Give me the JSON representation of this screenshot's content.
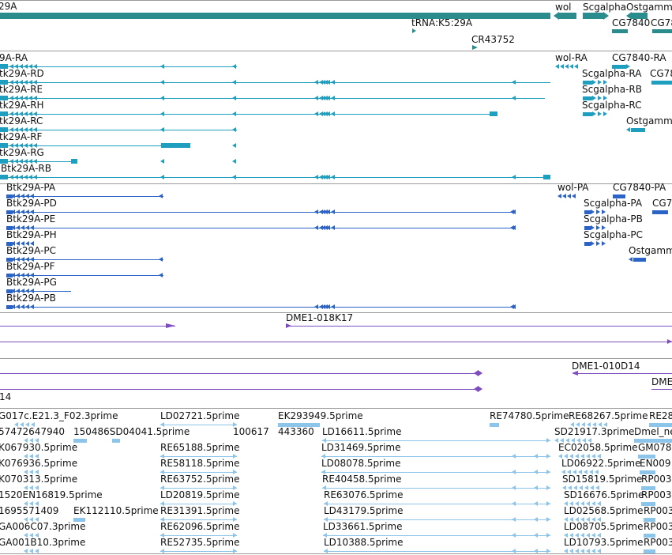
{
  "colors": {
    "gene": "#2a8c8c",
    "transcript_rna": "#1f9fbf",
    "protein": "#2b63c7",
    "clone": "#7f4cbf",
    "est": "#8cc4ea",
    "separator": "#9a9a9a"
  },
  "tracks": {
    "genes": {
      "labels": [
        "29A",
        "wol",
        "Scgalpha",
        "Ostgamma",
        "tRNA:K5:29A",
        "CG7840",
        "CG78",
        "CR43752"
      ]
    },
    "rna": {
      "labels": [
        "9A-RA",
        "tk29A-RD",
        "tk29A-RE",
        "tk29A-RH",
        "tk29A-RC",
        "tk29A-RF",
        "tk29A-RG",
        "Btk29A-RB",
        "wol-RA",
        "CG7840-RA",
        "Scgalpha-RA",
        "CG78",
        "Scgalpha-RB",
        "Scgalpha-RC",
        "Ostgamma"
      ]
    },
    "protein": {
      "labels": [
        "Btk29A-PA",
        "Btk29A-PD",
        "Btk29A-PE",
        "Btk29A-PH",
        "Btk29A-PC",
        "Btk29A-PF",
        "Btk29A-PG",
        "Btk29A-PB",
        "wol-PA",
        "CG7840-PA",
        "Scgalpha-PA",
        "CG7",
        "Scgalpha-PB",
        "Scgalpha-PC",
        "Ostgamm"
      ]
    },
    "clones_a": {
      "labels": [
        "DME1-018K17"
      ]
    },
    "clones_b": {
      "labels": [
        "DME1-010D14",
        "14",
        "DME"
      ]
    },
    "ests": {
      "labels": [
        "G017c.E21.3_F02.3prime",
        "LD02721.5prime",
        "EK293949.5prime",
        "RE74780.5prime",
        "RE68267.5prime",
        "RE28",
        "57472647940",
        "150486SD04041.5prime",
        "100617",
        "443360",
        "LD16611.5prime",
        "SD21917.3prime",
        "Dmel_ne",
        "K067930.5prime",
        "RE65188.5prime",
        "LD31469.5prime",
        "EC02058.5prime",
        "GM078",
        "K076936.5prime",
        "RE58118.5prime",
        "LD08078.5prime",
        "LD06922.5prime",
        "EN009",
        "K070313.5prime",
        "RE63752.5prime",
        "RE40458.5prime",
        "SD15819.5prime",
        "RP003",
        "1520EN16819.5prime",
        "LD20819.5prime",
        "RE63076.5prime",
        "SD16676.5prime",
        "RP003",
        "1695571409",
        "EK112110.5prime",
        "RE31391.5prime",
        "LD43179.5prime",
        "LD02568.5prime",
        "RP003",
        "GA006C07.3prime",
        "RE62096.5prime",
        "LD33661.5prime",
        "LD08705.5prime",
        "RP003",
        "GA001B10.3prime",
        "RE52735.5prime",
        "LD10388.5prime",
        "LD10793.5prime",
        "RP003"
      ]
    }
  }
}
